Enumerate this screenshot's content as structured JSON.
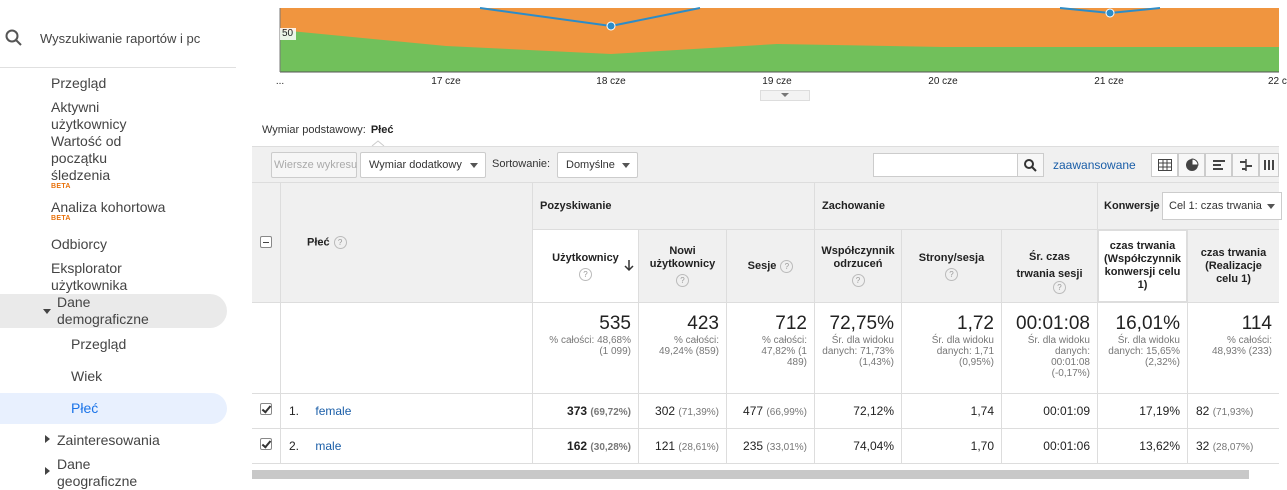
{
  "sidebar": {
    "search_placeholder": "Wyszukiwanie raportów i pc",
    "items": [
      {
        "label": "Przegląd"
      },
      {
        "label": "Aktywni użytkownicy"
      },
      {
        "label": "Wartość od początku śledzenia",
        "badge": "BETA"
      },
      {
        "label": "Analiza kohortowa",
        "badge": "BETA"
      },
      {
        "label": "Odbiorcy"
      },
      {
        "label": "Eksplorator użytkownika"
      }
    ],
    "group_demographics": "Dane demograficzne",
    "sub_items": [
      "Przegląd",
      "Wiek",
      "Płeć"
    ],
    "group_interests": "Zainteresowania",
    "group_geo": "Dane geograficzne"
  },
  "chart": {
    "y_label": "50",
    "x_ticks": [
      "...",
      "17 cze",
      "18 cze",
      "19 cze",
      "20 cze",
      "21 cze",
      "22 c"
    ],
    "colors": {
      "orange": "#f0953f",
      "green": "#71c05b",
      "line": "#2c8cc8"
    }
  },
  "primary_dimension": {
    "label": "Wymiar podstawowy:",
    "value": "Płeć"
  },
  "toolbar": {
    "plot_rows": "Wiersze wykresu",
    "secondary_dimension": "Wymiar dodatkowy",
    "sort_label": "Sortowanie:",
    "sort_value": "Domyślne",
    "advanced": "zaawansowane"
  },
  "table": {
    "dimension_header": "Płeć",
    "groups": {
      "acquisition": "Pozyskiwanie",
      "behavior": "Zachowanie",
      "conversions": "Konwersje",
      "goal_select": "Cel 1: czas trwania"
    },
    "columns": [
      "Użytkownicy",
      "Nowi użytkownicy",
      "Sesje",
      "Współczynnik odrzuceń",
      "Strony/sesja",
      "Śr. czas trwania sesji",
      "czas trwania (Współczynnik konwersji celu 1)",
      "czas trwania (Realizacje celu 1)"
    ],
    "totals": [
      {
        "value": "535",
        "sub": "% całości: 48,68% (1 099)"
      },
      {
        "value": "423",
        "sub": "% całości: 49,24% (859)"
      },
      {
        "value": "712",
        "sub": "% całości: 47,82% (1 489)"
      },
      {
        "value": "72,75%",
        "sub": "Śr. dla widoku danych: 71,73% (1,43%)"
      },
      {
        "value": "1,72",
        "sub": "Śr. dla widoku danych: 1,71 (0,95%)"
      },
      {
        "value": "00:01:08",
        "sub": "Śr. dla widoku danych: 00:01:08 (-0,17%)"
      },
      {
        "value": "16,01%",
        "sub": "Śr. dla widoku danych: 15,65% (2,32%)"
      },
      {
        "value": "114",
        "sub": "% całości: 48,93% (233)"
      }
    ],
    "rows": [
      {
        "index": "1.",
        "name": "female",
        "users": "373",
        "users_pct": "(69,72%)",
        "new_users": "302",
        "new_users_pct": "(71,39%)",
        "sessions": "477",
        "sessions_pct": "(66,99%)",
        "bounce": "72,12%",
        "pages": "1,74",
        "duration": "00:01:09",
        "conv_rate": "17,19%",
        "completions": "82",
        "completions_pct": "(71,93%)"
      },
      {
        "index": "2.",
        "name": "male",
        "users": "162",
        "users_pct": "(30,28%)",
        "new_users": "121",
        "new_users_pct": "(28,61%)",
        "sessions": "235",
        "sessions_pct": "(33,01%)",
        "bounce": "74,04%",
        "pages": "1,70",
        "duration": "00:01:06",
        "conv_rate": "13,62%",
        "completions": "32",
        "completions_pct": "(28,07%)"
      }
    ]
  }
}
